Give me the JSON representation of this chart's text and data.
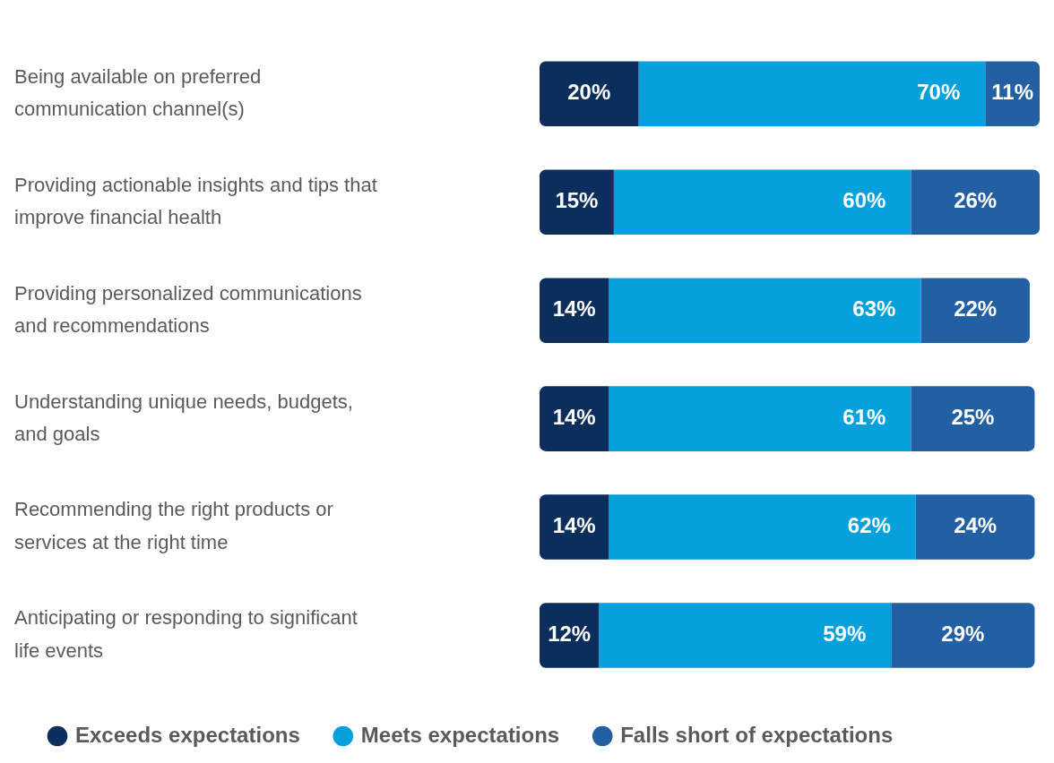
{
  "chart_data": {
    "type": "bar",
    "orientation": "horizontal",
    "stacked": true,
    "legend": "bottom",
    "tick_labels": "y",
    "categories": [
      "Being available on preferred communication channel(s)",
      "Providing actionable insights and tips that improve financial health",
      "Providing personalized communications and recommendations",
      "Understanding unique needs, budgets, and goals",
      "Recommending the right products or services at the right time",
      "Anticipating or responding to significant life events"
    ],
    "series": [
      {
        "name": "Exceeds expectations",
        "color": "#0b2e5c",
        "values": [
          20,
          15,
          14,
          14,
          14,
          12
        ],
        "value_labels": [
          "20%",
          "15%",
          "14%",
          "14%",
          "14%",
          "12%"
        ]
      },
      {
        "name": "Meets expectations",
        "color": "#06a0dd",
        "values": [
          70,
          60,
          63,
          61,
          62,
          59
        ],
        "value_labels": [
          "70%",
          "60%",
          "63%",
          "61%",
          "62%",
          "59%"
        ]
      },
      {
        "name": "Falls short of expectations",
        "color": "#235fa3",
        "values": [
          11,
          26,
          22,
          25,
          24,
          29
        ],
        "value_labels": [
          "11%",
          "26%",
          "22%",
          "25%",
          "24%",
          "29%"
        ]
      }
    ]
  }
}
